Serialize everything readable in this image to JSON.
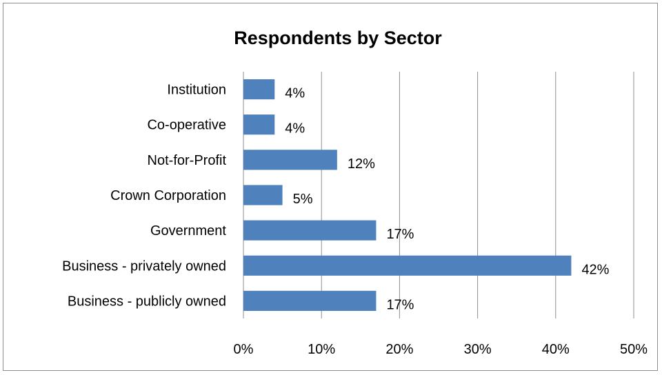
{
  "chart_data": {
    "type": "bar",
    "orientation": "horizontal",
    "title": "Respondents by Sector",
    "categories": [
      "Institution",
      "Co-operative",
      "Not-for-Profit",
      "Crown Corporation",
      "Government",
      "Business - privately owned",
      "Business - publicly owned"
    ],
    "values": [
      4,
      4,
      12,
      5,
      17,
      42,
      17
    ],
    "data_labels": [
      "4%",
      "4%",
      "12%",
      "5%",
      "17%",
      "42%",
      "17%"
    ],
    "xlim": [
      0,
      50
    ],
    "ticks": [
      0,
      10,
      20,
      30,
      40,
      50
    ],
    "tick_labels": [
      "0%",
      "10%",
      "20%",
      "30%",
      "40%",
      "50%"
    ],
    "grid": true,
    "legend": "none",
    "bar_color": "#4f81bd"
  }
}
